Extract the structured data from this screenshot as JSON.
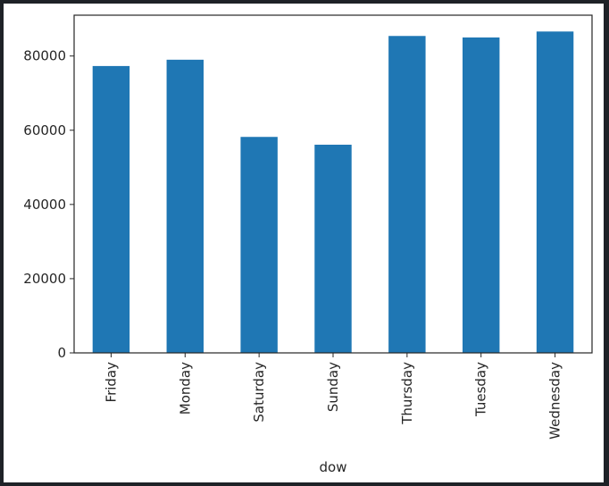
{
  "chart_data": {
    "type": "bar",
    "categories": [
      "Friday",
      "Monday",
      "Saturday",
      "Sunday",
      "Thursday",
      "Tuesday",
      "Wednesday"
    ],
    "values": [
      77300,
      79000,
      58200,
      56100,
      85400,
      85000,
      86600
    ],
    "title": "",
    "xlabel": "dow",
    "ylabel": "",
    "ylim": [
      0,
      91000
    ],
    "yticks": [
      0,
      20000,
      40000,
      60000,
      80000
    ],
    "grid": false,
    "bar_color": "#1f77b4"
  }
}
